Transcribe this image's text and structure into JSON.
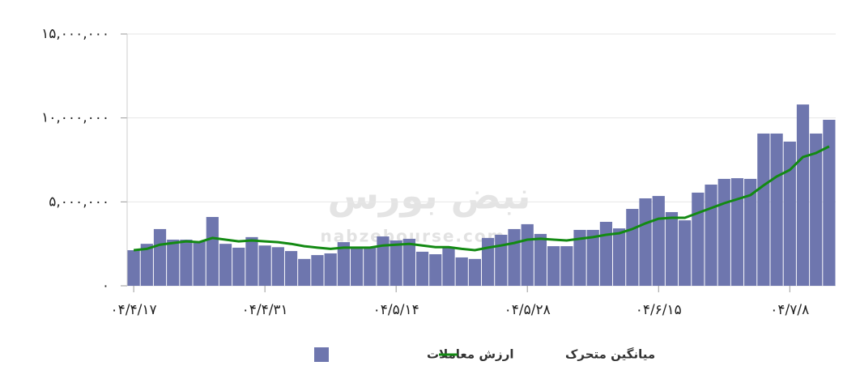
{
  "chart_data": {
    "type": "bar",
    "categories": [
      "۰۴/۴/۱۷",
      null,
      null,
      null,
      null,
      null,
      null,
      null,
      null,
      null,
      "۰۴/۴/۳۱",
      null,
      null,
      null,
      null,
      null,
      null,
      null,
      null,
      null,
      "۰۴/۵/۱۴",
      null,
      null,
      null,
      null,
      null,
      null,
      null,
      null,
      null,
      "۰۴/۵/۲۸",
      null,
      null,
      null,
      null,
      null,
      null,
      null,
      null,
      null,
      "۰۴/۶/۱۵",
      null,
      null,
      null,
      null,
      null,
      null,
      null,
      null,
      null,
      "۰۴/۷/۸",
      null,
      null,
      null
    ],
    "series": [
      {
        "name": "ارزش معاملات",
        "type": "bar",
        "color": "#6e76ae",
        "values": [
          2120000,
          2500000,
          3380000,
          2750000,
          2750000,
          2650000,
          4100000,
          2500000,
          2270000,
          2900000,
          2400000,
          2300000,
          2070000,
          1600000,
          1830000,
          1930000,
          2600000,
          2270000,
          2270000,
          2940000,
          2700000,
          2800000,
          2030000,
          1880000,
          2300000,
          1690000,
          1600000,
          2850000,
          3040000,
          3380000,
          3670000,
          3090000,
          2360000,
          2360000,
          3330000,
          3330000,
          3810000,
          3420000,
          4580000,
          5210000,
          5350000,
          4390000,
          3900000,
          5550000,
          6030000,
          6370000,
          6410000,
          6370000,
          9070000,
          9070000,
          8590000,
          10800000,
          9070000,
          9890000
        ]
      },
      {
        "name": "میانگین متحرک",
        "type": "line",
        "color": "#138a13",
        "values": [
          2120000,
          2200000,
          2450000,
          2550000,
          2650000,
          2600000,
          2850000,
          2750000,
          2650000,
          2700000,
          2650000,
          2600000,
          2500000,
          2360000,
          2270000,
          2200000,
          2270000,
          2270000,
          2270000,
          2400000,
          2450000,
          2500000,
          2400000,
          2300000,
          2300000,
          2200000,
          2120000,
          2270000,
          2400000,
          2550000,
          2750000,
          2800000,
          2750000,
          2700000,
          2800000,
          2900000,
          3040000,
          3130000,
          3380000,
          3720000,
          4000000,
          4050000,
          4050000,
          4340000,
          4630000,
          4920000,
          5160000,
          5400000,
          5980000,
          6510000,
          6900000,
          7670000,
          7910000,
          8300000
        ]
      }
    ],
    "ylim": [
      0,
      15000000
    ],
    "yticks": [
      {
        "value": 0,
        "label": "۰"
      },
      {
        "value": 5000000,
        "label": "۵,۰۰۰,۰۰۰"
      },
      {
        "value": 10000000,
        "label": "۱۰,۰۰۰,۰۰۰"
      },
      {
        "value": 15000000,
        "label": "۱۵,۰۰۰,۰۰۰"
      }
    ],
    "grid": true,
    "legend": "bottom",
    "watermark": {
      "logo": "نبض بورس",
      "url": "nabzebourse.com"
    }
  }
}
